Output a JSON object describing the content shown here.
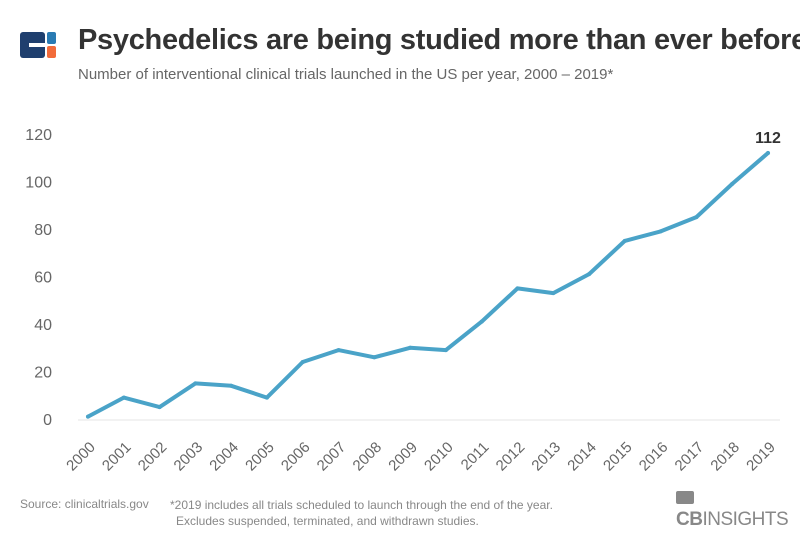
{
  "header": {
    "title": "Psychedelics are being studied more than ever before",
    "subtitle": "Number of interventional clinical trials launched in the US per year, 2000 – 2019*"
  },
  "footer": {
    "source": "Source: clinicaltrials.gov",
    "note_line1": "*2019 includes all trials scheduled to launch through the end of the year.",
    "note_line2": "Excludes suspended, terminated, and withdrawn studies.",
    "brand_bold": "CB",
    "brand_rest": "INSIGHTS"
  },
  "colors": {
    "line": "#4aa3c8",
    "logo_dark": "#1f3f6e",
    "logo_blue": "#2a7bb3",
    "logo_orange": "#f26b3a"
  },
  "chart_data": {
    "type": "line",
    "title": "Psychedelics are being studied more than ever before",
    "subtitle": "Number of interventional clinical trials launched in the US per year, 2000 – 2019*",
    "xlabel": "",
    "ylabel": "",
    "categories": [
      "2000",
      "2001",
      "2002",
      "2003",
      "2004",
      "2005",
      "2006",
      "2007",
      "2008",
      "2009",
      "2010",
      "2011",
      "2012",
      "2013",
      "2014",
      "2015",
      "2016",
      "2017",
      "2018",
      "2019"
    ],
    "values": [
      1,
      9,
      5,
      15,
      14,
      9,
      24,
      29,
      26,
      30,
      29,
      41,
      55,
      53,
      61,
      75,
      79,
      85,
      99,
      112
    ],
    "ylim": [
      0,
      120
    ],
    "yticks": [
      "0",
      "20",
      "40",
      "60",
      "80",
      "100",
      "120"
    ],
    "grid": false,
    "data_labels": [
      {
        "x": "2019",
        "label": "112"
      }
    ]
  }
}
